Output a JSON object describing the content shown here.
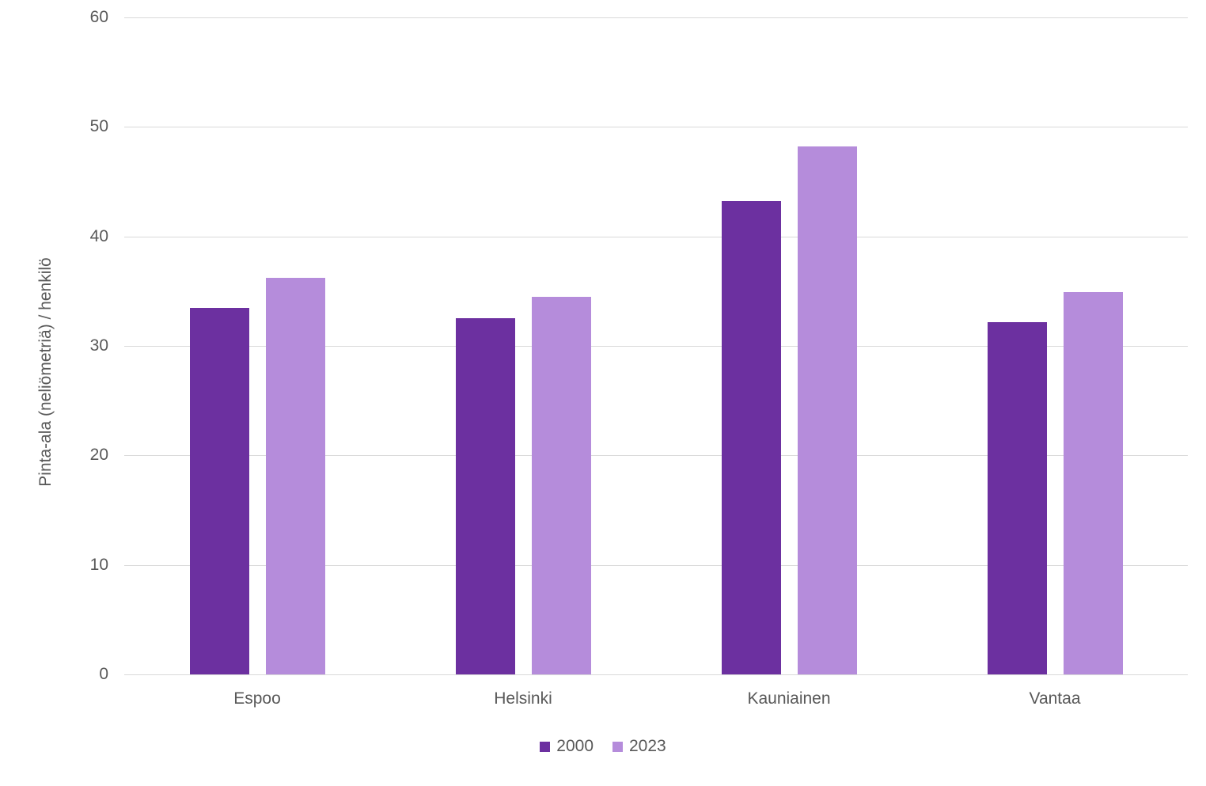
{
  "chart_data": {
    "type": "bar",
    "categories": [
      "Espoo",
      "Helsinki",
      "Kauniainen",
      "Vantaa"
    ],
    "series": [
      {
        "name": "2000",
        "color": "#6C30A0",
        "values": [
          33.5,
          32.5,
          43.2,
          32.2
        ]
      },
      {
        "name": "2023",
        "color": "#B58CDB",
        "values": [
          36.2,
          34.5,
          48.2,
          34.9
        ]
      }
    ],
    "title": "",
    "xlabel": "",
    "ylabel": "Pinta-ala (neliömetriä) / henkilö",
    "ylim": [
      0,
      60
    ],
    "yticks": [
      0,
      10,
      20,
      30,
      40,
      50,
      60
    ],
    "grid": true,
    "legend_position": "bottom"
  },
  "colors": {
    "background": "#FFFFFF",
    "gridline": "#D9D9D9",
    "axis_text": "#595959",
    "series_2000": "#6C30A0",
    "series_2023": "#B58CDB"
  }
}
